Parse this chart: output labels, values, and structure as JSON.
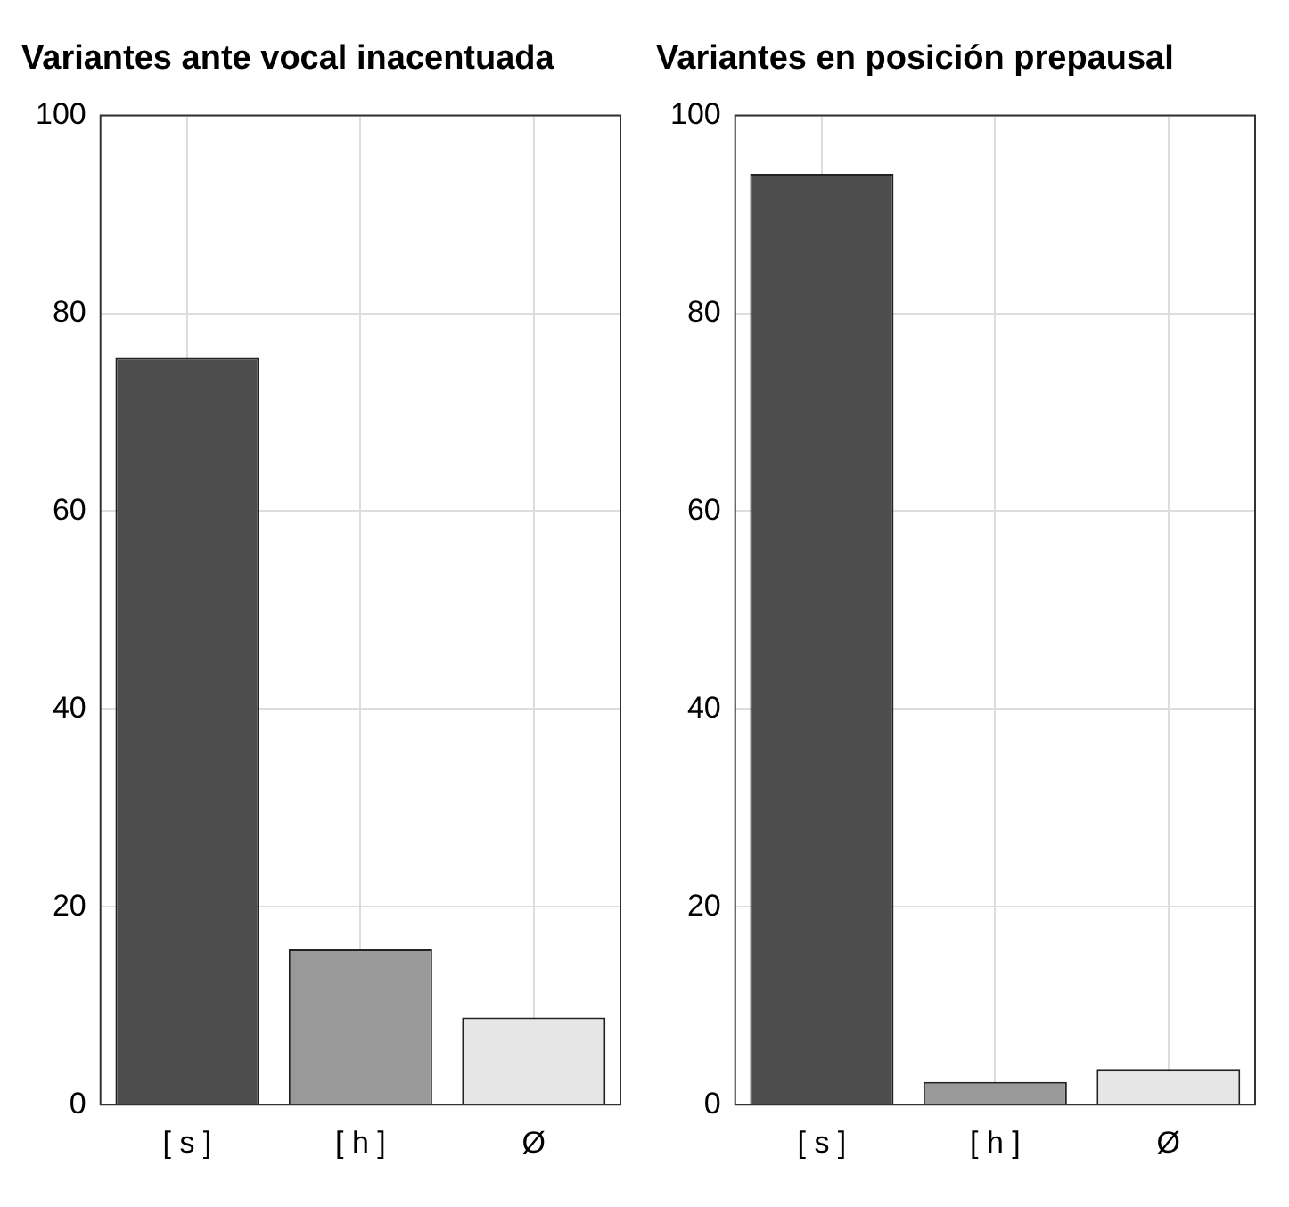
{
  "chart_data": [
    {
      "type": "bar",
      "title": "Variantes ante vocal inacentuada",
      "categories": [
        "[ s ]",
        "[ h ]",
        "Ø"
      ],
      "values": [
        75.5,
        15.7,
        8.8
      ],
      "colors": [
        "#4d4d4d",
        "#999999",
        "#e6e6e6"
      ],
      "ylim": [
        0,
        100
      ],
      "yticks": [
        0,
        20,
        40,
        60,
        80,
        100
      ],
      "grid": true
    },
    {
      "type": "bar",
      "title": "Variantes en posición prepausal",
      "categories": [
        "[ s ]",
        "[ h ]",
        "Ø"
      ],
      "values": [
        94.1,
        2.3,
        3.6
      ],
      "colors": [
        "#4d4d4d",
        "#999999",
        "#e6e6e6"
      ],
      "ylim": [
        0,
        100
      ],
      "yticks": [
        0,
        20,
        40,
        60,
        80,
        100
      ],
      "grid": true
    }
  ]
}
